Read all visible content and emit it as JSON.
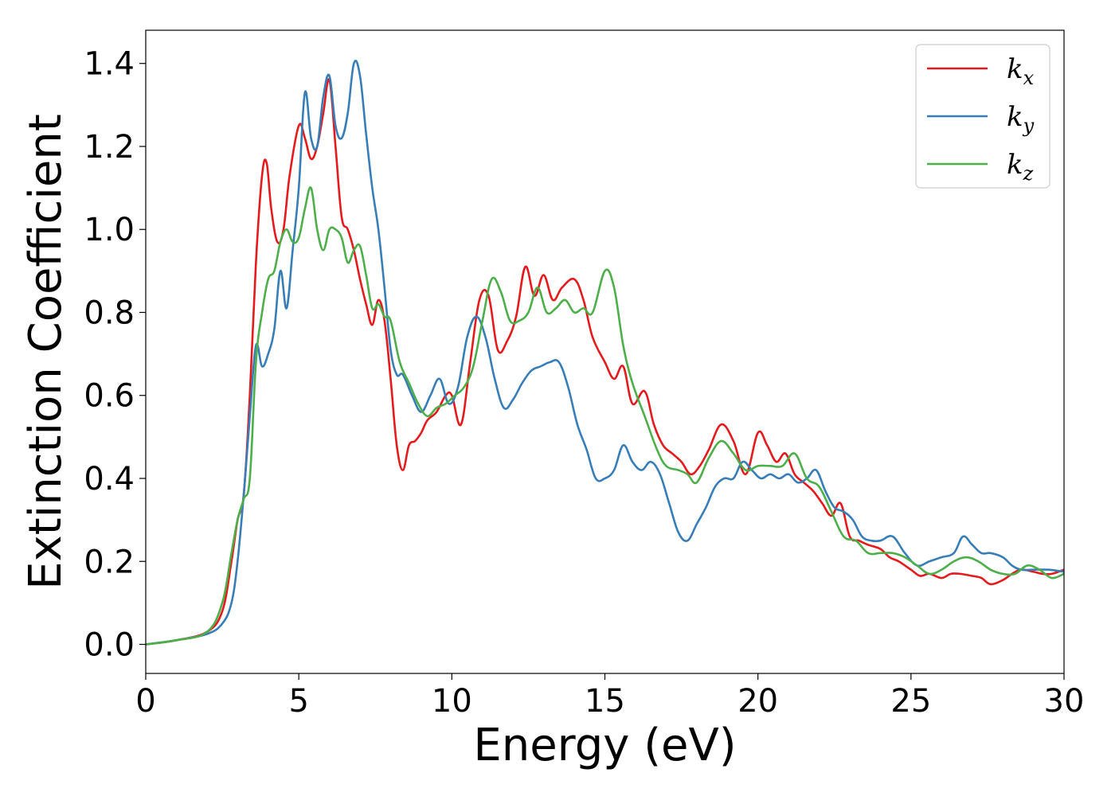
{
  "chart_data": {
    "type": "line",
    "title": "",
    "xlabel": "Energy (eV)",
    "ylabel": "Extinction Coefficient",
    "xlim": [
      0,
      30
    ],
    "ylim": [
      -0.07,
      1.48
    ],
    "xticks": [
      0,
      5,
      10,
      15,
      20,
      25,
      30
    ],
    "xtick_labels": [
      "0",
      "5",
      "10",
      "15",
      "20",
      "25",
      "30"
    ],
    "yticks": [
      0.0,
      0.2,
      0.4,
      0.6,
      0.8,
      1.0,
      1.2,
      1.4
    ],
    "ytick_labels": [
      "0.0",
      "0.2",
      "0.4",
      "0.6",
      "0.8",
      "1.0",
      "1.2",
      "1.4"
    ],
    "grid": false,
    "legend_position": "top-right",
    "series": [
      {
        "name": "k_x",
        "label_base": "k",
        "label_sub": "x",
        "color": "#e41a1c",
        "x": [
          0,
          1,
          2,
          2.5,
          2.8,
          3.0,
          3.2,
          3.4,
          3.6,
          3.8,
          3.95,
          4.1,
          4.3,
          4.5,
          4.7,
          5.0,
          5.2,
          5.4,
          5.6,
          5.8,
          6.0,
          6.2,
          6.4,
          6.6,
          6.8,
          7.0,
          7.2,
          7.4,
          7.6,
          7.8,
          8.0,
          8.2,
          8.4,
          8.6,
          8.8,
          9.0,
          9.2,
          9.5,
          9.8,
          10.0,
          10.3,
          10.6,
          10.9,
          11.2,
          11.5,
          11.8,
          12.1,
          12.4,
          12.7,
          13.0,
          13.3,
          13.6,
          14.0,
          14.3,
          14.6,
          15.0,
          15.3,
          15.6,
          15.9,
          16.3,
          16.6,
          16.9,
          17.2,
          17.5,
          17.8,
          18.1,
          18.4,
          18.8,
          19.2,
          19.6,
          20.0,
          20.3,
          20.6,
          20.9,
          21.2,
          21.5,
          21.8,
          22.1,
          22.4,
          22.7,
          23.0,
          23.3,
          23.6,
          24.0,
          24.3,
          24.6,
          25.0,
          25.3,
          25.6,
          26.0,
          26.3,
          26.6,
          27.0,
          27.3,
          27.6,
          28.0,
          28.3,
          28.6,
          29.0,
          29.3,
          29.6,
          30.0
        ],
        "y": [
          0.0,
          0.01,
          0.03,
          0.08,
          0.2,
          0.3,
          0.36,
          0.6,
          0.92,
          1.13,
          1.16,
          1.05,
          0.97,
          1.0,
          1.13,
          1.25,
          1.22,
          1.17,
          1.2,
          1.28,
          1.36,
          1.2,
          1.03,
          1.0,
          0.95,
          0.88,
          0.82,
          0.77,
          0.83,
          0.78,
          0.64,
          0.48,
          0.42,
          0.48,
          0.49,
          0.51,
          0.54,
          0.56,
          0.6,
          0.6,
          0.53,
          0.68,
          0.83,
          0.84,
          0.71,
          0.73,
          0.79,
          0.91,
          0.84,
          0.89,
          0.83,
          0.86,
          0.88,
          0.83,
          0.74,
          0.68,
          0.64,
          0.67,
          0.58,
          0.61,
          0.53,
          0.48,
          0.46,
          0.44,
          0.41,
          0.43,
          0.47,
          0.53,
          0.49,
          0.41,
          0.51,
          0.48,
          0.44,
          0.46,
          0.41,
          0.39,
          0.37,
          0.34,
          0.31,
          0.34,
          0.26,
          0.25,
          0.24,
          0.23,
          0.21,
          0.2,
          0.18,
          0.165,
          0.17,
          0.16,
          0.17,
          0.17,
          0.165,
          0.16,
          0.145,
          0.155,
          0.17,
          0.18,
          0.175,
          0.17,
          0.17,
          0.18
        ]
      },
      {
        "name": "k_y",
        "label_base": "k",
        "label_sub": "y",
        "color": "#377eb8",
        "x": [
          0,
          1,
          2,
          2.5,
          2.8,
          3.0,
          3.2,
          3.4,
          3.6,
          3.8,
          4.0,
          4.2,
          4.4,
          4.6,
          4.8,
          5.0,
          5.2,
          5.4,
          5.6,
          5.8,
          6.0,
          6.2,
          6.4,
          6.6,
          6.8,
          7.0,
          7.2,
          7.4,
          7.6,
          7.8,
          8.0,
          8.2,
          8.4,
          8.7,
          9.0,
          9.3,
          9.6,
          9.9,
          10.2,
          10.5,
          10.8,
          11.1,
          11.4,
          11.7,
          12.0,
          12.3,
          12.6,
          12.9,
          13.2,
          13.5,
          13.8,
          14.1,
          14.4,
          14.7,
          15.0,
          15.3,
          15.6,
          15.9,
          16.2,
          16.5,
          16.8,
          17.1,
          17.4,
          17.7,
          18.0,
          18.3,
          18.6,
          18.9,
          19.2,
          19.5,
          19.8,
          20.1,
          20.4,
          20.7,
          21.0,
          21.3,
          21.6,
          21.9,
          22.2,
          22.5,
          22.8,
          23.1,
          23.4,
          23.7,
          24.0,
          24.4,
          24.8,
          25.2,
          25.6,
          26.0,
          26.4,
          26.7,
          27.0,
          27.3,
          27.6,
          28.0,
          28.3,
          28.6,
          29.0,
          29.5,
          30.0
        ],
        "y": [
          0.0,
          0.01,
          0.025,
          0.05,
          0.1,
          0.2,
          0.36,
          0.55,
          0.72,
          0.67,
          0.7,
          0.76,
          0.9,
          0.81,
          0.95,
          1.1,
          1.33,
          1.22,
          1.2,
          1.32,
          1.37,
          1.25,
          1.22,
          1.28,
          1.4,
          1.37,
          1.23,
          1.1,
          1.0,
          0.86,
          0.71,
          0.65,
          0.65,
          0.6,
          0.56,
          0.6,
          0.64,
          0.58,
          0.62,
          0.74,
          0.79,
          0.74,
          0.64,
          0.57,
          0.59,
          0.63,
          0.66,
          0.67,
          0.68,
          0.68,
          0.62,
          0.53,
          0.47,
          0.4,
          0.4,
          0.42,
          0.48,
          0.44,
          0.42,
          0.44,
          0.41,
          0.34,
          0.27,
          0.25,
          0.29,
          0.33,
          0.38,
          0.4,
          0.4,
          0.44,
          0.42,
          0.4,
          0.41,
          0.4,
          0.41,
          0.39,
          0.4,
          0.42,
          0.37,
          0.33,
          0.32,
          0.3,
          0.26,
          0.25,
          0.25,
          0.26,
          0.22,
          0.19,
          0.2,
          0.21,
          0.22,
          0.26,
          0.24,
          0.22,
          0.22,
          0.21,
          0.19,
          0.18,
          0.18,
          0.18,
          0.175
        ]
      },
      {
        "name": "k_z",
        "label_base": "k",
        "label_sub": "z",
        "color": "#4daf4a",
        "x": [
          0,
          1,
          2,
          2.5,
          2.8,
          3.0,
          3.2,
          3.4,
          3.6,
          3.8,
          4.0,
          4.2,
          4.4,
          4.6,
          4.8,
          5.0,
          5.2,
          5.4,
          5.6,
          5.8,
          6.0,
          6.2,
          6.4,
          6.6,
          6.8,
          7.0,
          7.2,
          7.4,
          7.6,
          7.8,
          8.0,
          8.3,
          8.6,
          8.9,
          9.2,
          9.5,
          9.8,
          10.1,
          10.4,
          10.7,
          11.0,
          11.3,
          11.6,
          11.9,
          12.2,
          12.5,
          12.8,
          13.1,
          13.4,
          13.7,
          14.0,
          14.3,
          14.6,
          15.0,
          15.3,
          15.6,
          15.9,
          16.3,
          16.7,
          17.0,
          17.4,
          17.7,
          18.0,
          18.4,
          18.8,
          19.2,
          19.6,
          20.0,
          20.4,
          20.8,
          21.2,
          21.6,
          22.0,
          22.4,
          22.8,
          23.2,
          23.6,
          24.0,
          24.4,
          24.8,
          25.2,
          25.6,
          26.0,
          26.4,
          26.8,
          27.2,
          27.6,
          28.0,
          28.4,
          28.8,
          29.2,
          29.6,
          30.0
        ],
        "y": [
          0.0,
          0.01,
          0.03,
          0.1,
          0.22,
          0.3,
          0.35,
          0.4,
          0.68,
          0.8,
          0.88,
          0.9,
          0.97,
          1.0,
          0.97,
          0.98,
          1.05,
          1.1,
          1.0,
          0.95,
          1.0,
          1.0,
          0.98,
          0.92,
          0.95,
          0.96,
          0.89,
          0.81,
          0.82,
          0.79,
          0.78,
          0.68,
          0.63,
          0.58,
          0.55,
          0.57,
          0.58,
          0.6,
          0.62,
          0.67,
          0.78,
          0.88,
          0.85,
          0.78,
          0.78,
          0.8,
          0.86,
          0.8,
          0.81,
          0.83,
          0.8,
          0.81,
          0.8,
          0.9,
          0.86,
          0.72,
          0.63,
          0.55,
          0.47,
          0.43,
          0.42,
          0.41,
          0.39,
          0.45,
          0.49,
          0.46,
          0.42,
          0.43,
          0.43,
          0.43,
          0.46,
          0.4,
          0.38,
          0.32,
          0.26,
          0.25,
          0.22,
          0.22,
          0.22,
          0.21,
          0.19,
          0.17,
          0.18,
          0.2,
          0.21,
          0.2,
          0.18,
          0.17,
          0.17,
          0.19,
          0.18,
          0.16,
          0.17
        ]
      }
    ]
  }
}
